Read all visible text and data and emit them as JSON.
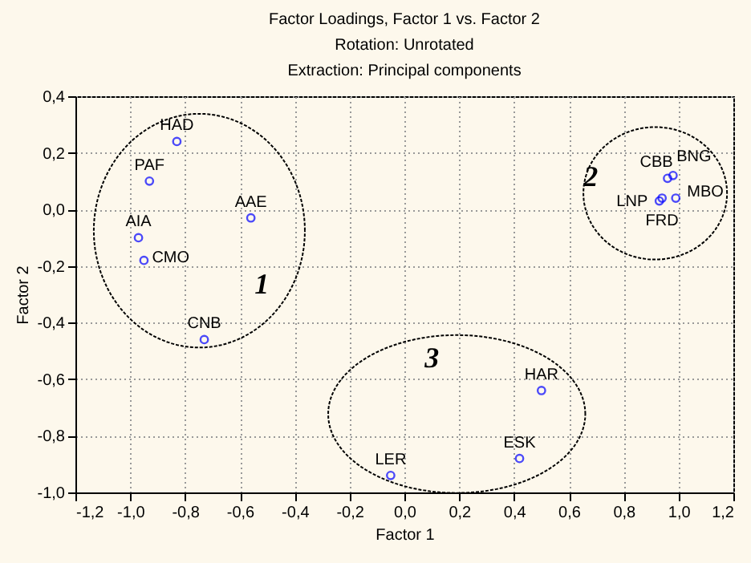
{
  "chart_data": {
    "type": "scatter",
    "title": "Factor Loadings, Factor 1 vs. Factor 2",
    "subtitle": "Rotation: Unrotated\nExtraction: Principal components",
    "xlabel": "Factor 1",
    "ylabel": "Factor 2",
    "x": [
      -0.83,
      -0.93,
      -0.97,
      -0.95,
      -0.56,
      -0.73,
      0.96,
      0.98,
      0.93,
      0.94,
      0.99,
      0.5,
      0.42,
      -0.05
    ],
    "values": [
      0.24,
      0.1,
      -0.1,
      -0.18,
      -0.03,
      -0.46,
      0.11,
      0.12,
      0.03,
      0.04,
      0.04,
      -0.64,
      -0.88,
      -0.94
    ],
    "value_labels": [
      "HAD",
      "PAF",
      "AIA",
      "CMO",
      "AAE",
      "CNB",
      "CBB",
      "BNG",
      "LNP",
      "FRD",
      "MBO",
      "HAR",
      "ESK",
      "LER"
    ],
    "color": "#0000ff",
    "marker": "circle",
    "xlim": [
      -1.2,
      1.2
    ],
    "xticks": [
      {
        "value": -1.2,
        "label": "-1,2"
      },
      {
        "value": -1.0,
        "label": "-1,0"
      },
      {
        "value": -0.8,
        "label": "-0,8"
      },
      {
        "value": -0.6,
        "label": "-0,6"
      },
      {
        "value": -0.4,
        "label": "-0,4"
      },
      {
        "value": -0.2,
        "label": "-0,2"
      },
      {
        "value": 0.0,
        "label": "0,0"
      },
      {
        "value": 0.2,
        "label": "0,2"
      },
      {
        "value": 0.4,
        "label": "0,4"
      },
      {
        "value": 0.6,
        "label": "0,6"
      },
      {
        "value": 0.8,
        "label": "0,8"
      },
      {
        "value": 1.0,
        "label": "1,0"
      },
      {
        "value": 1.2,
        "label": "1,2"
      }
    ],
    "ylim": [
      -1.0,
      0.4
    ],
    "yticks": [
      {
        "value": -1.0,
        "label": "-1,0"
      },
      {
        "value": -0.8,
        "label": "-0,8"
      },
      {
        "value": -0.6,
        "label": "-0,6"
      },
      {
        "value": -0.4,
        "label": "-0,4"
      },
      {
        "value": -0.2,
        "label": "-0,2"
      },
      {
        "value": 0.0,
        "label": "0,0"
      },
      {
        "value": 0.2,
        "label": "0,2"
      },
      {
        "value": 0.4,
        "label": "0,4"
      }
    ],
    "grid": true,
    "annotations": [
      "1",
      "2",
      "3"
    ]
  }
}
